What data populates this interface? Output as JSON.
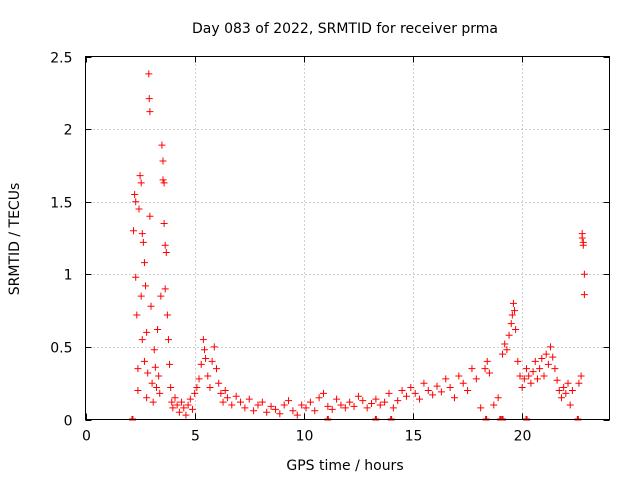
{
  "chart_data": {
    "type": "scatter",
    "title": "Day 083 of 2022, SRMTID for receiver prma",
    "xlabel": "GPS time / hours",
    "ylabel": "SRMTID / TECUs",
    "xlim": [
      0,
      24
    ],
    "ylim": [
      0,
      2.5
    ],
    "xticks": [
      0,
      5,
      10,
      15,
      20
    ],
    "yticks": [
      0,
      0.5,
      1,
      1.5,
      2,
      2.5
    ],
    "xtick_labels": [
      "0",
      "5",
      "10",
      "15",
      "20"
    ],
    "ytick_labels": [
      "0",
      "0.5",
      "1",
      "1.5",
      "2",
      "2.5"
    ],
    "grid": true,
    "marker": "+",
    "color": "#ff0000",
    "series": [
      {
        "name": "SRMTID",
        "points": [
          [
            2.2,
            1.3
          ],
          [
            2.25,
            1.55
          ],
          [
            2.3,
            1.5
          ],
          [
            2.3,
            0.98
          ],
          [
            2.35,
            0.72
          ],
          [
            2.4,
            0.35
          ],
          [
            2.4,
            0.2
          ],
          [
            2.45,
            1.45
          ],
          [
            2.5,
            1.68
          ],
          [
            2.55,
            1.63
          ],
          [
            2.55,
            0.85
          ],
          [
            2.6,
            1.28
          ],
          [
            2.6,
            0.55
          ],
          [
            2.65,
            1.22
          ],
          [
            2.7,
            1.08
          ],
          [
            2.7,
            0.4
          ],
          [
            2.75,
            0.92
          ],
          [
            2.8,
            0.6
          ],
          [
            2.8,
            0.15
          ],
          [
            2.85,
            0.32
          ],
          [
            2.9,
            2.38
          ],
          [
            2.92,
            2.21
          ],
          [
            2.95,
            2.12
          ],
          [
            2.95,
            1.4
          ],
          [
            3.0,
            0.78
          ],
          [
            3.05,
            0.25
          ],
          [
            3.1,
            0.12
          ],
          [
            3.15,
            0.48
          ],
          [
            3.2,
            0.36
          ],
          [
            3.25,
            0.22
          ],
          [
            3.3,
            0.62
          ],
          [
            3.35,
            0.3
          ],
          [
            3.4,
            0.18
          ],
          [
            3.45,
            0.85
          ],
          [
            3.5,
            1.89
          ],
          [
            3.55,
            1.78
          ],
          [
            3.55,
            1.65
          ],
          [
            3.6,
            1.63
          ],
          [
            3.6,
            1.35
          ],
          [
            3.65,
            1.2
          ],
          [
            3.65,
            0.9
          ],
          [
            3.7,
            1.15
          ],
          [
            3.75,
            0.72
          ],
          [
            3.8,
            0.55
          ],
          [
            3.85,
            0.38
          ],
          [
            3.9,
            0.22
          ],
          [
            3.95,
            0.12
          ],
          [
            4.0,
            0.08
          ],
          [
            4.1,
            0.15
          ],
          [
            4.2,
            0.1
          ],
          [
            4.3,
            0.05
          ],
          [
            4.4,
            0.12
          ],
          [
            4.5,
            0.08
          ],
          [
            4.6,
            0.03
          ],
          [
            4.7,
            0.1
          ],
          [
            4.8,
            0.14
          ],
          [
            4.9,
            0.07
          ],
          [
            5.0,
            0.18
          ],
          [
            5.1,
            0.22
          ],
          [
            5.2,
            0.28
          ],
          [
            5.3,
            0.38
          ],
          [
            5.4,
            0.55
          ],
          [
            5.45,
            0.48
          ],
          [
            5.5,
            0.42
          ],
          [
            5.6,
            0.3
          ],
          [
            5.7,
            0.22
          ],
          [
            5.8,
            0.4
          ],
          [
            5.9,
            0.5
          ],
          [
            6.0,
            0.35
          ],
          [
            6.1,
            0.25
          ],
          [
            6.2,
            0.18
          ],
          [
            6.3,
            0.12
          ],
          [
            6.4,
            0.2
          ],
          [
            6.5,
            0.15
          ],
          [
            6.7,
            0.1
          ],
          [
            6.9,
            0.16
          ],
          [
            7.1,
            0.12
          ],
          [
            7.3,
            0.08
          ],
          [
            7.5,
            0.14
          ],
          [
            7.7,
            0.06
          ],
          [
            7.9,
            0.1
          ],
          [
            8.1,
            0.12
          ],
          [
            8.3,
            0.05
          ],
          [
            8.5,
            0.09
          ],
          [
            8.7,
            0.07
          ],
          [
            8.9,
            0.04
          ],
          [
            9.1,
            0.1
          ],
          [
            9.3,
            0.13
          ],
          [
            9.5,
            0.06
          ],
          [
            9.7,
            0.03
          ],
          [
            9.9,
            0.1
          ],
          [
            10.1,
            0.08
          ],
          [
            10.3,
            0.12
          ],
          [
            10.5,
            0.06
          ],
          [
            10.7,
            0.15
          ],
          [
            10.9,
            0.18
          ],
          [
            11.1,
            0.09
          ],
          [
            11.3,
            0.07
          ],
          [
            11.5,
            0.14
          ],
          [
            11.7,
            0.1
          ],
          [
            11.9,
            0.08
          ],
          [
            12.1,
            0.12
          ],
          [
            12.3,
            0.09
          ],
          [
            12.5,
            0.16
          ],
          [
            12.7,
            0.13
          ],
          [
            12.9,
            0.08
          ],
          [
            13.1,
            0.11
          ],
          [
            13.3,
            0.14
          ],
          [
            13.5,
            0.1
          ],
          [
            13.7,
            0.12
          ],
          [
            13.9,
            0.18
          ],
          [
            14.1,
            0.08
          ],
          [
            14.3,
            0.13
          ],
          [
            14.5,
            0.2
          ],
          [
            14.7,
            0.16
          ],
          [
            14.9,
            0.22
          ],
          [
            15.1,
            0.18
          ],
          [
            15.3,
            0.14
          ],
          [
            15.5,
            0.25
          ],
          [
            15.7,
            0.2
          ],
          [
            15.9,
            0.17
          ],
          [
            16.1,
            0.23
          ],
          [
            16.3,
            0.19
          ],
          [
            16.5,
            0.28
          ],
          [
            16.7,
            0.22
          ],
          [
            16.9,
            0.15
          ],
          [
            17.1,
            0.3
          ],
          [
            17.3,
            0.25
          ],
          [
            17.5,
            0.2
          ],
          [
            17.7,
            0.35
          ],
          [
            17.9,
            0.28
          ],
          [
            18.1,
            0.08
          ],
          [
            18.3,
            0.35
          ],
          [
            18.4,
            0.4
          ],
          [
            18.5,
            0.32
          ],
          [
            18.7,
            0.1
          ],
          [
            18.9,
            0.15
          ],
          [
            19.1,
            0.45
          ],
          [
            19.2,
            0.52
          ],
          [
            19.3,
            0.48
          ],
          [
            19.4,
            0.58
          ],
          [
            19.5,
            0.66
          ],
          [
            19.55,
            0.72
          ],
          [
            19.6,
            0.8
          ],
          [
            19.65,
            0.75
          ],
          [
            19.7,
            0.62
          ],
          [
            19.8,
            0.4
          ],
          [
            19.9,
            0.3
          ],
          [
            20.0,
            0.22
          ],
          [
            20.1,
            0.28
          ],
          [
            20.2,
            0.35
          ],
          [
            20.3,
            0.3
          ],
          [
            20.4,
            0.25
          ],
          [
            20.5,
            0.33
          ],
          [
            20.6,
            0.4
          ],
          [
            20.7,
            0.28
          ],
          [
            20.8,
            0.35
          ],
          [
            20.9,
            0.42
          ],
          [
            21.0,
            0.3
          ],
          [
            21.1,
            0.45
          ],
          [
            21.2,
            0.38
          ],
          [
            21.3,
            0.5
          ],
          [
            21.4,
            0.43
          ],
          [
            21.5,
            0.35
          ],
          [
            21.6,
            0.27
          ],
          [
            21.7,
            0.2
          ],
          [
            21.8,
            0.15
          ],
          [
            21.9,
            0.22
          ],
          [
            22.0,
            0.18
          ],
          [
            22.1,
            0.25
          ],
          [
            22.2,
            0.1
          ],
          [
            22.3,
            0.2
          ],
          [
            22.6,
            0.25
          ],
          [
            22.7,
            0.3
          ],
          [
            22.75,
            1.25
          ],
          [
            22.8,
            1.2
          ],
          [
            22.8,
            1.22
          ],
          [
            22.85,
            1.0
          ],
          [
            22.85,
            0.86
          ],
          [
            22.75,
            1.28
          ]
        ],
        "zero_points": [
          2.15,
          11.1,
          13.3,
          14.0,
          18.35,
          19.0,
          19.1,
          20.2,
          22.55
        ]
      }
    ]
  }
}
